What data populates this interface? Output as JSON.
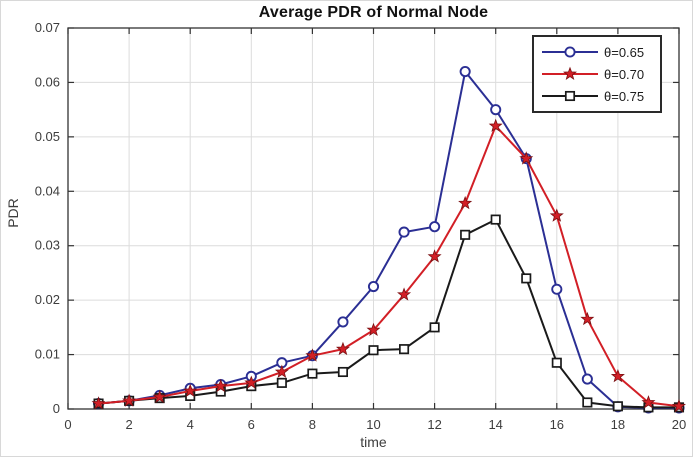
{
  "title": "Average PDR of Normal Node",
  "axes": {
    "xlabel": "time",
    "ylabel": "PDR"
  },
  "colors": {
    "series_blue": "#2b2f94",
    "series_red": "#d21f26",
    "series_black": "#1a1a1a",
    "grid": "#dcdcdc",
    "frame": "#333333",
    "tick_label": "#3d3d3d"
  },
  "legend": {
    "position": "top-right",
    "items": [
      "θ=0.65",
      "θ=0.70",
      "θ=0.75"
    ]
  },
  "chart_data": {
    "type": "line",
    "title": "Average PDR of Normal Node",
    "xlabel": "time",
    "ylabel": "PDR",
    "xlim": [
      0,
      20
    ],
    "ylim": [
      0,
      0.07
    ],
    "xticks": [
      0,
      2,
      4,
      6,
      8,
      10,
      12,
      14,
      16,
      18,
      20
    ],
    "yticks": [
      0,
      0.01,
      0.02,
      0.03,
      0.04,
      0.05,
      0.06,
      0.07
    ],
    "grid": true,
    "legend_position": "top-right",
    "x": [
      1,
      2,
      3,
      4,
      5,
      6,
      7,
      8,
      9,
      10,
      11,
      12,
      13,
      14,
      15,
      16,
      17,
      18,
      19,
      20
    ],
    "series": [
      {
        "name": "θ=0.65",
        "color": "#2b2f94",
        "marker": "circle",
        "values": [
          0.001,
          0.0015,
          0.0025,
          0.0038,
          0.0045,
          0.006,
          0.0085,
          0.0098,
          0.016,
          0.0225,
          0.0325,
          0.0335,
          0.062,
          0.055,
          0.046,
          0.022,
          0.0055,
          0.0004,
          0.0002,
          0.0002
        ]
      },
      {
        "name": "θ=0.70",
        "color": "#d21f26",
        "marker": "star",
        "values": [
          0.001,
          0.0015,
          0.0022,
          0.0033,
          0.0042,
          0.0048,
          0.0068,
          0.0098,
          0.011,
          0.0145,
          0.021,
          0.028,
          0.0378,
          0.052,
          0.046,
          0.0355,
          0.0165,
          0.006,
          0.0012,
          0.0005
        ]
      },
      {
        "name": "θ=0.75",
        "color": "#1a1a1a",
        "marker": "square",
        "values": [
          0.001,
          0.0015,
          0.002,
          0.0024,
          0.0032,
          0.0042,
          0.0048,
          0.0065,
          0.0068,
          0.0108,
          0.011,
          0.015,
          0.032,
          0.0348,
          0.024,
          0.0085,
          0.0012,
          0.0005,
          0.0003,
          0.0003
        ]
      }
    ]
  }
}
